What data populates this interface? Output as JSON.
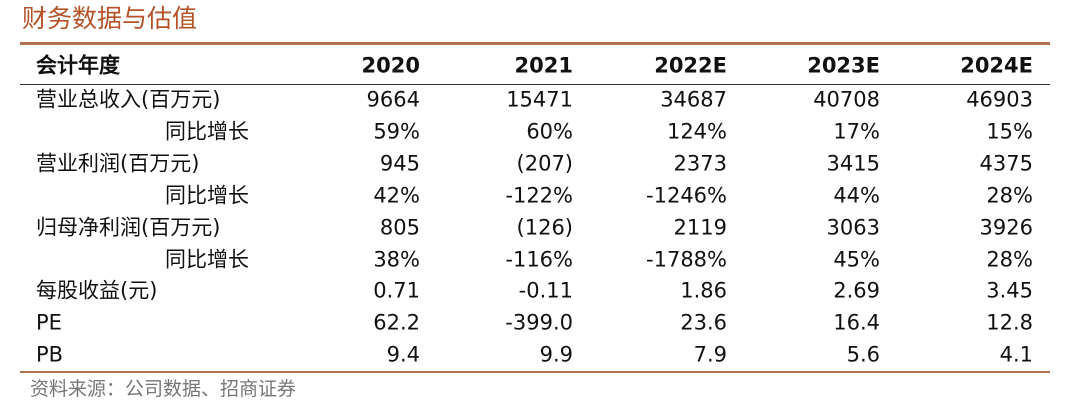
{
  "header": {
    "title": "财务数据与估值"
  },
  "table": {
    "columns": [
      "会计年度",
      "2020",
      "2021",
      "2022E",
      "2023E",
      "2024E"
    ],
    "rows": [
      [
        "营业总收入(百万元)",
        "9664",
        "15471",
        "34687",
        "40708",
        "46903"
      ],
      [
        "同比增长",
        "59%",
        "60%",
        "124%",
        "17%",
        "15%"
      ],
      [
        "营业利润(百万元)",
        "945",
        "(207)",
        "2373",
        "3415",
        "4375"
      ],
      [
        "同比增长",
        "42%",
        "-122%",
        "-1246%",
        "44%",
        "28%"
      ],
      [
        "归母净利润(百万元)",
        "805",
        "(126)",
        "2119",
        "3063",
        "3926"
      ],
      [
        "同比增长",
        "38%",
        "-116%",
        "-1788%",
        "45%",
        "28%"
      ],
      [
        "每股收益(元)",
        "0.71",
        "-0.11",
        "1.86",
        "2.69",
        "3.45"
      ],
      [
        "PE",
        "62.2",
        "-399.0",
        "23.6",
        "16.4",
        "12.8"
      ],
      [
        "PB",
        "9.4",
        "9.9",
        "7.9",
        "5.6",
        "4.1"
      ]
    ]
  },
  "footer": {
    "source": "资料来源：公司数据、招商证券"
  }
}
